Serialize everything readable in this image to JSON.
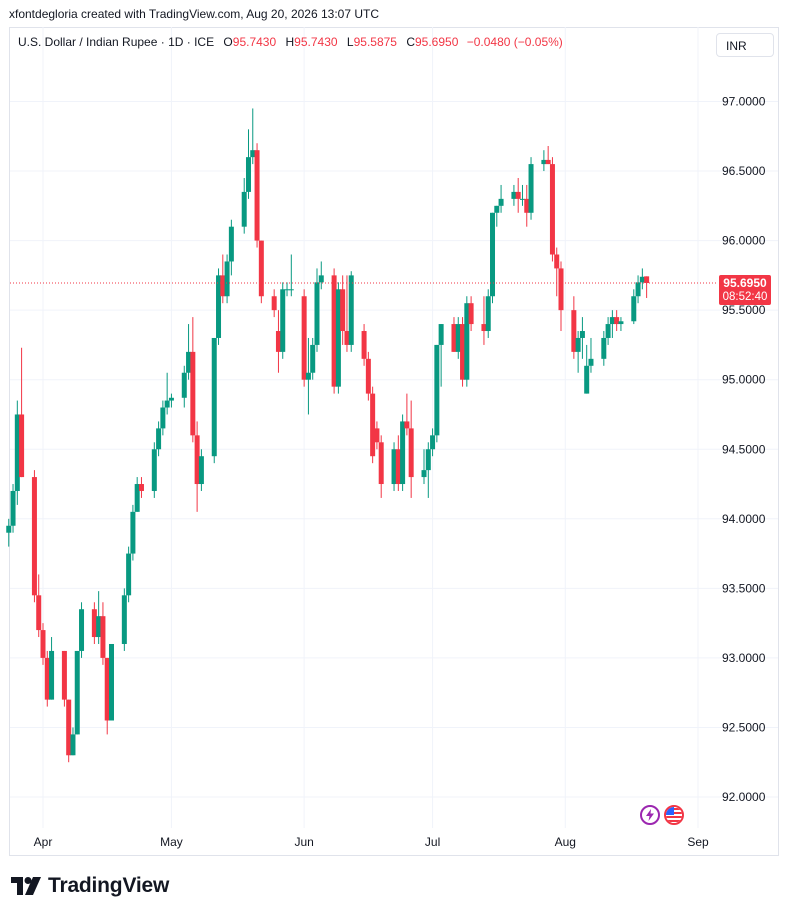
{
  "header": {
    "credit": "xfontdegloria created with TradingView.com, Aug 20, 2026 13:07 UTC"
  },
  "legend": {
    "symbol": "U.S. Dollar / Indian Rupee · 1D · ICE",
    "o_label": "O",
    "o_value": "95.7430",
    "h_label": "H",
    "h_value": "95.7430",
    "l_label": "L",
    "l_value": "95.5875",
    "c_label": "C",
    "c_value": "95.6950",
    "change": "−0.0480 (−0.05%)"
  },
  "currency_button": "INR",
  "price_tag": {
    "price": "95.6950",
    "countdown": "08:52:40"
  },
  "branding": {
    "logo_text": "TradingView"
  },
  "colors": {
    "up": "#089981",
    "down": "#f23645",
    "grid": "#f0f3fa",
    "text": "#131722",
    "border": "#e0e3eb"
  },
  "icons": {
    "badge_1": "lightning-icon",
    "badge_2": "us-flag-icon"
  },
  "chart_data": {
    "type": "candlestick",
    "title": "U.S. Dollar / Indian Rupee · 1D · ICE",
    "ylim": [
      91.8,
      97.25
    ],
    "y_ticks": [
      "97.0000",
      "96.5000",
      "96.0000",
      "95.5000",
      "95.0000",
      "94.5000",
      "94.0000",
      "93.5000",
      "93.0000",
      "92.5000",
      "92.0000"
    ],
    "y_tick_values": [
      97.0,
      96.5,
      96.0,
      95.5,
      95.0,
      94.5,
      94.0,
      93.5,
      93.0,
      92.5,
      92.0
    ],
    "x_ticks": [
      "Apr",
      "May",
      "Jun",
      "Jul",
      "Aug",
      "Sep"
    ],
    "x_tick_dates": [
      "2026-04-01",
      "2026-05-01",
      "2026-06-01",
      "2026-07-01",
      "2026-08-01",
      "2026-09-01"
    ],
    "last_price": 95.695,
    "ohlc_fields": [
      "date",
      "open",
      "high",
      "low",
      "close"
    ],
    "candles": [
      [
        "2026-03-24",
        93.9,
        94.0,
        93.8,
        93.95
      ],
      [
        "2026-03-25",
        93.95,
        94.25,
        93.9,
        94.2
      ],
      [
        "2026-03-26",
        94.2,
        94.85,
        94.1,
        94.75
      ],
      [
        "2026-03-27",
        94.75,
        95.23,
        94.3,
        94.3
      ],
      [
        "2026-03-30",
        94.3,
        94.35,
        93.4,
        93.45
      ],
      [
        "2026-03-31",
        93.45,
        93.6,
        93.15,
        93.2
      ],
      [
        "2026-04-01",
        93.2,
        93.25,
        92.95,
        93.0
      ],
      [
        "2026-04-02",
        93.0,
        93.05,
        92.65,
        92.7
      ],
      [
        "2026-04-03",
        92.7,
        93.15,
        92.7,
        93.05
      ],
      [
        "2026-04-06",
        93.05,
        93.05,
        92.65,
        92.7
      ],
      [
        "2026-04-07",
        92.7,
        92.7,
        92.25,
        92.3
      ],
      [
        "2026-04-08",
        92.3,
        92.5,
        92.3,
        92.45
      ],
      [
        "2026-04-09",
        92.45,
        93.05,
        92.45,
        93.05
      ],
      [
        "2026-04-10",
        93.05,
        93.4,
        93.0,
        93.35
      ],
      [
        "2026-04-13",
        93.35,
        93.4,
        93.1,
        93.15
      ],
      [
        "2026-04-14",
        93.15,
        93.48,
        93.1,
        93.3
      ],
      [
        "2026-04-15",
        93.3,
        93.4,
        92.95,
        93.0
      ],
      [
        "2026-04-16",
        93.0,
        93.0,
        92.45,
        92.55
      ],
      [
        "2026-04-17",
        92.55,
        93.1,
        92.55,
        93.1
      ],
      [
        "2026-04-20",
        93.1,
        93.5,
        93.05,
        93.45
      ],
      [
        "2026-04-21",
        93.45,
        93.8,
        93.4,
        93.75
      ],
      [
        "2026-04-22",
        93.75,
        94.1,
        93.7,
        94.05
      ],
      [
        "2026-04-23",
        94.05,
        94.3,
        94.05,
        94.25
      ],
      [
        "2026-04-24",
        94.25,
        94.3,
        94.15,
        94.2
      ],
      [
        "2026-04-27",
        94.2,
        94.55,
        94.15,
        94.5
      ],
      [
        "2026-04-28",
        94.5,
        94.7,
        94.45,
        94.65
      ],
      [
        "2026-04-29",
        94.65,
        94.85,
        94.6,
        94.8
      ],
      [
        "2026-04-30",
        94.8,
        95.05,
        94.75,
        94.85
      ],
      [
        "2026-05-01",
        94.85,
        94.9,
        94.8,
        94.87
      ],
      [
        "2026-05-04",
        94.87,
        95.1,
        94.8,
        95.05
      ],
      [
        "2026-05-05",
        95.05,
        95.4,
        95.0,
        95.2
      ],
      [
        "2026-05-06",
        95.2,
        95.45,
        94.55,
        94.6
      ],
      [
        "2026-05-07",
        94.6,
        94.7,
        94.05,
        94.25
      ],
      [
        "2026-05-08",
        94.25,
        94.5,
        94.2,
        94.45
      ],
      [
        "2026-05-11",
        94.45,
        95.3,
        94.4,
        95.3
      ],
      [
        "2026-05-12",
        95.3,
        95.8,
        95.25,
        95.75
      ],
      [
        "2026-05-13",
        95.75,
        95.9,
        95.55,
        95.6
      ],
      [
        "2026-05-14",
        95.6,
        95.9,
        95.55,
        95.85
      ],
      [
        "2026-05-15",
        95.85,
        96.15,
        95.75,
        96.1
      ],
      [
        "2026-05-18",
        96.1,
        96.45,
        96.05,
        96.35
      ],
      [
        "2026-05-19",
        96.35,
        96.8,
        96.3,
        96.6
      ],
      [
        "2026-05-20",
        96.6,
        96.95,
        96.55,
        96.65
      ],
      [
        "2026-05-21",
        96.65,
        96.7,
        95.95,
        96.0
      ],
      [
        "2026-05-22",
        96.0,
        96.0,
        95.55,
        95.6
      ],
      [
        "2026-05-25",
        95.6,
        95.65,
        95.45,
        95.5
      ],
      [
        "2026-05-26",
        95.35,
        95.5,
        95.05,
        95.2
      ],
      [
        "2026-05-27",
        95.2,
        95.7,
        95.15,
        95.65
      ],
      [
        "2026-05-28",
        95.65,
        95.7,
        95.6,
        95.65
      ],
      [
        "2026-05-29",
        95.65,
        95.9,
        95.6,
        95.65
      ],
      [
        "2026-06-01",
        95.6,
        95.65,
        94.95,
        95.0
      ],
      [
        "2026-06-02",
        95.0,
        95.3,
        94.75,
        95.05
      ],
      [
        "2026-06-03",
        95.05,
        95.3,
        95.0,
        95.25
      ],
      [
        "2026-06-04",
        95.25,
        95.8,
        95.2,
        95.7
      ],
      [
        "2026-06-05",
        95.7,
        95.85,
        95.65,
        95.75
      ],
      [
        "2026-06-08",
        95.75,
        95.8,
        94.9,
        94.95
      ],
      [
        "2026-06-09",
        94.95,
        95.7,
        94.9,
        95.65
      ],
      [
        "2026-06-10",
        95.65,
        95.75,
        95.25,
        95.35
      ],
      [
        "2026-06-11",
        95.35,
        95.75,
        95.2,
        95.25
      ],
      [
        "2026-06-12",
        95.25,
        95.78,
        95.2,
        95.75
      ],
      [
        "2026-06-15",
        95.35,
        95.4,
        95.1,
        95.15
      ],
      [
        "2026-06-16",
        95.15,
        95.2,
        94.85,
        94.9
      ],
      [
        "2026-06-17",
        94.9,
        94.95,
        94.4,
        94.45
      ],
      [
        "2026-06-18",
        94.65,
        94.7,
        94.5,
        94.55
      ],
      [
        "2026-06-19",
        94.55,
        94.6,
        94.15,
        94.25
      ],
      [
        "2026-06-22",
        94.25,
        94.55,
        94.2,
        94.5
      ],
      [
        "2026-06-23",
        94.5,
        94.6,
        94.2,
        94.25
      ],
      [
        "2026-06-24",
        94.25,
        94.75,
        94.2,
        94.7
      ],
      [
        "2026-06-25",
        94.7,
        94.9,
        94.6,
        94.65
      ],
      [
        "2026-06-26",
        94.65,
        94.85,
        94.15,
        94.3
      ],
      [
        "2026-06-29",
        94.3,
        94.5,
        94.25,
        94.35
      ],
      [
        "2026-06-30",
        94.35,
        94.55,
        94.15,
        94.5
      ],
      [
        "2026-07-01",
        94.5,
        94.65,
        94.45,
        94.6
      ],
      [
        "2026-07-02",
        94.6,
        95.25,
        94.55,
        95.25
      ],
      [
        "2026-07-03",
        95.25,
        95.4,
        94.95,
        95.4
      ],
      [
        "2026-07-06",
        95.4,
        95.45,
        95.2,
        95.2
      ],
      [
        "2026-07-07",
        95.2,
        95.45,
        95.15,
        95.4
      ],
      [
        "2026-07-08",
        95.4,
        95.45,
        94.95,
        95.0
      ],
      [
        "2026-07-09",
        95.0,
        95.6,
        94.95,
        95.55
      ],
      [
        "2026-07-10",
        95.55,
        95.6,
        95.35,
        95.4
      ],
      [
        "2026-07-13",
        95.4,
        95.6,
        95.25,
        95.35
      ],
      [
        "2026-07-14",
        95.35,
        95.65,
        95.3,
        95.6
      ],
      [
        "2026-07-15",
        95.6,
        96.2,
        95.55,
        96.2
      ],
      [
        "2026-07-16",
        96.2,
        96.25,
        96.1,
        96.25
      ],
      [
        "2026-07-17",
        96.25,
        96.4,
        96.2,
        96.3
      ],
      [
        "2026-07-20",
        96.3,
        96.4,
        96.25,
        96.35
      ],
      [
        "2026-07-21",
        96.35,
        96.45,
        96.2,
        96.3
      ],
      [
        "2026-07-22",
        96.3,
        96.4,
        96.25,
        96.3
      ],
      [
        "2026-07-23",
        96.3,
        96.4,
        96.1,
        96.2
      ],
      [
        "2026-07-24",
        96.2,
        96.6,
        96.15,
        96.55
      ],
      [
        "2026-07-27",
        96.55,
        96.65,
        96.5,
        96.58
      ],
      [
        "2026-07-28",
        96.58,
        96.68,
        96.55,
        96.55
      ],
      [
        "2026-07-29",
        96.55,
        96.6,
        95.85,
        95.9
      ],
      [
        "2026-07-30",
        95.9,
        95.95,
        95.6,
        95.8
      ],
      [
        "2026-07-31",
        95.8,
        95.85,
        95.35,
        95.5
      ],
      [
        "2026-08-03",
        95.5,
        95.6,
        95.15,
        95.2
      ],
      [
        "2026-08-04",
        95.2,
        95.35,
        95.05,
        95.3
      ],
      [
        "2026-08-05",
        95.3,
        95.45,
        95.15,
        95.35
      ],
      [
        "2026-08-06",
        94.9,
        95.25,
        94.9,
        95.1
      ],
      [
        "2026-08-07",
        95.1,
        95.3,
        95.05,
        95.15
      ],
      [
        "2026-08-10",
        95.15,
        95.35,
        95.1,
        95.3
      ],
      [
        "2026-08-11",
        95.3,
        95.45,
        95.25,
        95.4
      ],
      [
        "2026-08-12",
        95.4,
        95.5,
        95.3,
        95.45
      ],
      [
        "2026-08-13",
        95.45,
        95.5,
        95.35,
        95.4
      ],
      [
        "2026-08-14",
        95.4,
        95.45,
        95.35,
        95.42
      ],
      [
        "2026-08-17",
        95.42,
        95.65,
        95.4,
        95.6
      ],
      [
        "2026-08-18",
        95.6,
        95.75,
        95.55,
        95.7
      ],
      [
        "2026-08-19",
        95.7,
        95.8,
        95.65,
        95.74
      ],
      [
        "2026-08-20",
        95.743,
        95.743,
        95.5875,
        95.695
      ]
    ]
  }
}
